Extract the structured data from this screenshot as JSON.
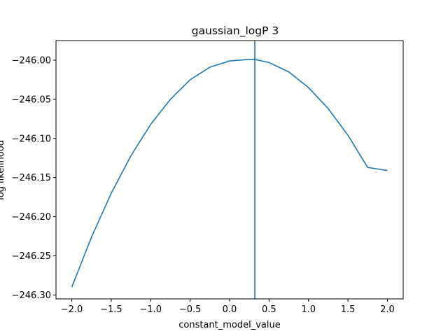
{
  "chart_data": {
    "type": "line",
    "title": "gaussian_logP 3",
    "xlabel": "constant_model_value",
    "ylabel": "log likelihood",
    "xlim": [
      -2.2,
      2.2
    ],
    "ylim": [
      -246.305,
      -245.975
    ],
    "xticks": [
      -2.0,
      -1.5,
      -1.0,
      -0.5,
      0.0,
      0.5,
      1.0,
      1.5,
      2.0
    ],
    "xtick_labels": [
      "−2.0",
      "−1.5",
      "−1.0",
      "−0.5",
      "0.0",
      "0.5",
      "1.0",
      "1.5",
      "2.0"
    ],
    "yticks": [
      -246.0,
      -246.05,
      -246.1,
      -246.15,
      -246.2,
      -246.25,
      -246.3
    ],
    "ytick_labels": [
      "−246.00",
      "−246.05",
      "−246.10",
      "−246.15",
      "−246.20",
      "−246.25",
      "−246.30"
    ],
    "grid": false,
    "color": "#1f77b4",
    "vline_x": 0.32,
    "series": [
      {
        "x": [
          -2.0,
          -1.75,
          -1.5,
          -1.25,
          -1.0,
          -0.75,
          -0.5,
          -0.25,
          0.0,
          0.25,
          0.32,
          0.5,
          0.75,
          1.0,
          1.25,
          1.5,
          1.75,
          2.0
        ],
        "values": [
          -246.29,
          -246.226,
          -246.17,
          -246.122,
          -246.082,
          -246.05,
          -246.025,
          -246.009,
          -246.001,
          -245.999,
          -245.999,
          -246.003,
          -246.015,
          -246.035,
          -246.062,
          -246.096,
          -246.137,
          -246.141
        ]
      }
    ]
  }
}
